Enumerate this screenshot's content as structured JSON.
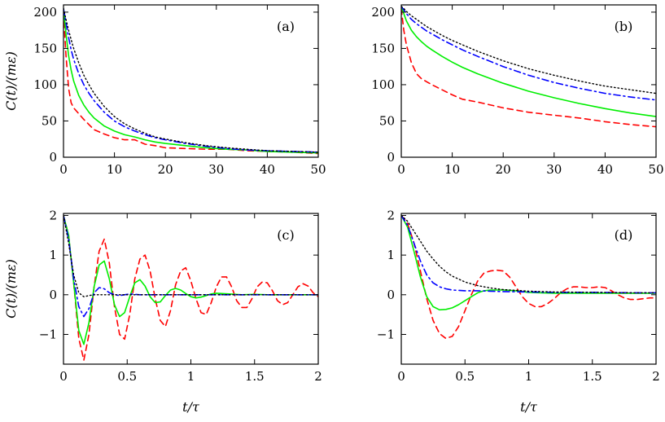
{
  "chart_data": [
    {
      "type": "line",
      "panel_label": "(a)",
      "xlabel": "",
      "ylabel": "C(t)/(mε)",
      "xlim": [
        0,
        50
      ],
      "ylim": [
        0,
        210
      ],
      "x_ticks": [
        "0",
        "10",
        "20",
        "30",
        "40",
        "50"
      ],
      "y_ticks": [
        "0",
        "50",
        "100",
        "150",
        "200"
      ],
      "x_tick_values": [
        0,
        10,
        20,
        30,
        40,
        50
      ],
      "y_tick_values": [
        0,
        50,
        100,
        150,
        200
      ],
      "grid": false,
      "series": [
        {
          "color": "#ff0000",
          "dash": "dashed",
          "x": [
            0,
            0.5,
            1,
            1.5,
            2,
            3,
            4,
            5,
            6,
            8,
            10,
            12,
            14,
            16,
            18,
            20,
            24,
            28,
            32,
            36,
            40,
            45,
            50
          ],
          "y": [
            200,
            140,
            95,
            75,
            68,
            60,
            52,
            45,
            38,
            32,
            27,
            24,
            24,
            18,
            16,
            13,
            12,
            11,
            11,
            9,
            8,
            7,
            5
          ]
        },
        {
          "color": "#00ee00",
          "dash": "solid",
          "x": [
            0,
            0.5,
            1,
            1.5,
            2,
            3,
            4,
            5,
            6,
            8,
            10,
            12,
            14,
            16,
            18,
            20,
            24,
            28,
            32,
            36,
            40,
            45,
            50
          ],
          "y": [
            205,
            170,
            140,
            120,
            105,
            85,
            72,
            62,
            54,
            43,
            36,
            31,
            28,
            24,
            21,
            19,
            16,
            13,
            11,
            10,
            8,
            7,
            6
          ]
        },
        {
          "color": "#0000ff",
          "dash": "dashdot",
          "x": [
            0,
            0.5,
            1,
            1.5,
            2,
            3,
            4,
            5,
            6,
            8,
            10,
            12,
            14,
            16,
            18,
            20,
            24,
            28,
            32,
            36,
            40,
            45,
            50
          ],
          "y": [
            205,
            185,
            165,
            148,
            135,
            115,
            100,
            88,
            78,
            62,
            50,
            42,
            36,
            31,
            27,
            24,
            19,
            15,
            12,
            10,
            9,
            8,
            7
          ]
        },
        {
          "color": "#000000",
          "dash": "dotted",
          "x": [
            0,
            0.5,
            1,
            1.5,
            2,
            3,
            4,
            5,
            6,
            8,
            10,
            12,
            14,
            16,
            18,
            20,
            24,
            28,
            32,
            36,
            40,
            45,
            50
          ],
          "y": [
            205,
            190,
            175,
            162,
            150,
            130,
            113,
            100,
            88,
            70,
            56,
            46,
            39,
            33,
            28,
            25,
            20,
            16,
            13,
            11,
            9,
            8,
            7
          ]
        }
      ]
    },
    {
      "type": "line",
      "panel_label": "(b)",
      "xlabel": "",
      "ylabel": "",
      "xlim": [
        0,
        50
      ],
      "ylim": [
        0,
        210
      ],
      "x_ticks": [
        "0",
        "10",
        "20",
        "30",
        "40",
        "50"
      ],
      "y_ticks": [
        "0",
        "50",
        "100",
        "150",
        "200"
      ],
      "x_tick_values": [
        0,
        10,
        20,
        30,
        40,
        50
      ],
      "y_tick_values": [
        0,
        50,
        100,
        150,
        200
      ],
      "grid": false,
      "series": [
        {
          "color": "#ff0000",
          "dash": "dashed",
          "x": [
            0,
            0.5,
            1,
            2,
            3,
            4,
            5,
            6,
            8,
            10,
            12,
            15,
            20,
            25,
            30,
            35,
            40,
            45,
            50
          ],
          "y": [
            205,
            175,
            155,
            130,
            115,
            108,
            104,
            100,
            93,
            86,
            80,
            76,
            68,
            62,
            58,
            54,
            49,
            45,
            42
          ]
        },
        {
          "color": "#00ee00",
          "dash": "solid",
          "x": [
            0,
            0.5,
            1,
            2,
            3,
            4,
            5,
            6,
            8,
            10,
            12,
            15,
            20,
            25,
            30,
            35,
            40,
            45,
            50
          ],
          "y": [
            208,
            198,
            188,
            175,
            166,
            159,
            153,
            148,
            139,
            131,
            124,
            115,
            102,
            91,
            82,
            74,
            67,
            61,
            56
          ]
        },
        {
          "color": "#0000ff",
          "dash": "dashdot",
          "x": [
            0,
            0.5,
            1,
            2,
            3,
            4,
            5,
            6,
            8,
            10,
            12,
            15,
            20,
            25,
            30,
            35,
            40,
            45,
            50
          ],
          "y": [
            208,
            203,
            198,
            190,
            184,
            179,
            174,
            170,
            162,
            155,
            148,
            139,
            125,
            113,
            103,
            95,
            88,
            83,
            79
          ]
        },
        {
          "color": "#000000",
          "dash": "dotted",
          "x": [
            0,
            0.5,
            1,
            2,
            3,
            4,
            5,
            6,
            8,
            10,
            12,
            15,
            20,
            25,
            30,
            35,
            40,
            45,
            50
          ],
          "y": [
            208,
            205,
            201,
            195,
            190,
            185,
            180,
            176,
            168,
            161,
            155,
            146,
            133,
            122,
            113,
            105,
            98,
            93,
            88
          ]
        }
      ]
    },
    {
      "type": "line",
      "panel_label": "(c)",
      "xlabel": "t/τ",
      "ylabel": "C(t)/(mε)",
      "xlim": [
        0,
        2
      ],
      "ylim": [
        -1.75,
        2.05
      ],
      "x_ticks": [
        "0",
        "0.5",
        "1",
        "1.5",
        "2"
      ],
      "y_ticks": [
        "−1",
        "0",
        "1",
        "2"
      ],
      "x_tick_values": [
        0,
        0.5,
        1,
        1.5,
        2
      ],
      "y_tick_values": [
        -1,
        0,
        1,
        2
      ],
      "grid": false,
      "series": [
        {
          "color": "#ff0000",
          "dash": "dashed",
          "x": [
            0,
            0.04,
            0.08,
            0.12,
            0.16,
            0.2,
            0.24,
            0.28,
            0.32,
            0.36,
            0.4,
            0.44,
            0.48,
            0.52,
            0.56,
            0.6,
            0.64,
            0.68,
            0.72,
            0.76,
            0.8,
            0.84,
            0.88,
            0.92,
            0.96,
            1.0,
            1.04,
            1.08,
            1.12,
            1.16,
            1.2,
            1.24,
            1.28,
            1.32,
            1.36,
            1.4,
            1.44,
            1.48,
            1.52,
            1.56,
            1.6,
            1.64,
            1.68,
            1.72,
            1.76,
            1.8,
            1.84,
            1.88,
            1.92,
            1.96,
            2.0
          ],
          "y": [
            2.0,
            1.5,
            0.3,
            -1.1,
            -1.65,
            -1.0,
            0.2,
            1.1,
            1.4,
            0.8,
            -0.3,
            -1.0,
            -1.12,
            -0.5,
            0.4,
            0.9,
            1.0,
            0.6,
            -0.1,
            -0.65,
            -0.8,
            -0.4,
            0.25,
            0.6,
            0.68,
            0.35,
            -0.1,
            -0.45,
            -0.5,
            -0.2,
            0.2,
            0.45,
            0.45,
            0.2,
            -0.15,
            -0.32,
            -0.32,
            -0.1,
            0.2,
            0.32,
            0.3,
            0.1,
            -0.15,
            -0.25,
            -0.2,
            0.0,
            0.2,
            0.28,
            0.22,
            0.05,
            -0.05
          ]
        },
        {
          "color": "#00ee00",
          "dash": "solid",
          "x": [
            0,
            0.04,
            0.08,
            0.12,
            0.16,
            0.2,
            0.24,
            0.28,
            0.32,
            0.36,
            0.4,
            0.44,
            0.48,
            0.52,
            0.56,
            0.6,
            0.64,
            0.68,
            0.72,
            0.76,
            0.8,
            0.84,
            0.88,
            0.92,
            0.96,
            1.0,
            1.04,
            1.08,
            1.12,
            1.16,
            1.2,
            1.3,
            1.4,
            1.5,
            1.6,
            1.7,
            1.8,
            1.9,
            2.0
          ],
          "y": [
            2.0,
            1.5,
            0.3,
            -0.9,
            -1.25,
            -0.7,
            0.2,
            0.75,
            0.85,
            0.4,
            -0.25,
            -0.55,
            -0.45,
            -0.05,
            0.3,
            0.38,
            0.22,
            -0.05,
            -0.2,
            -0.18,
            -0.02,
            0.12,
            0.16,
            0.12,
            0.03,
            -0.05,
            -0.08,
            -0.06,
            -0.02,
            0.02,
            0.04,
            0.02,
            0.0,
            0.01,
            0.0,
            0.0,
            0.0,
            0.0,
            0.0
          ]
        },
        {
          "color": "#0000ff",
          "dash": "dashdot",
          "x": [
            0,
            0.04,
            0.08,
            0.12,
            0.16,
            0.2,
            0.24,
            0.28,
            0.32,
            0.36,
            0.4,
            0.44,
            0.48,
            0.52,
            0.56,
            0.6,
            0.7,
            0.8,
            1.0,
            1.2,
            1.5,
            2.0
          ],
          "y": [
            2.0,
            1.4,
            0.4,
            -0.3,
            -0.55,
            -0.35,
            0.05,
            0.18,
            0.15,
            0.05,
            0.0,
            -0.02,
            0.0,
            0.02,
            0.01,
            0.0,
            0.0,
            0.0,
            0.0,
            0.0,
            0.0,
            0.0
          ]
        },
        {
          "color": "#000000",
          "dash": "dotted",
          "x": [
            0,
            0.04,
            0.08,
            0.12,
            0.16,
            0.2,
            0.24,
            0.28,
            0.32,
            0.4,
            0.5,
            0.7,
            1.0,
            1.5,
            2.0
          ],
          "y": [
            2.0,
            1.3,
            0.5,
            0.05,
            -0.05,
            -0.02,
            0.0,
            0.0,
            0.0,
            0.0,
            0.0,
            0.0,
            0.0,
            0.0,
            0.0
          ]
        }
      ]
    },
    {
      "type": "line",
      "panel_label": "(d)",
      "xlabel": "t/τ",
      "ylabel": "",
      "xlim": [
        0,
        2
      ],
      "ylim": [
        -1.75,
        2.05
      ],
      "x_ticks": [
        "0",
        "0.5",
        "1",
        "1.5",
        "2"
      ],
      "y_ticks": [
        "−1",
        "0",
        "1",
        "2"
      ],
      "x_tick_values": [
        0,
        0.5,
        1,
        1.5,
        2
      ],
      "y_tick_values": [
        -1,
        0,
        1,
        2
      ],
      "grid": false,
      "series": [
        {
          "color": "#ff0000",
          "dash": "dashed",
          "x": [
            0,
            0.05,
            0.1,
            0.15,
            0.2,
            0.25,
            0.3,
            0.35,
            0.4,
            0.45,
            0.5,
            0.55,
            0.6,
            0.65,
            0.7,
            0.75,
            0.8,
            0.85,
            0.9,
            0.95,
            1.0,
            1.05,
            1.1,
            1.15,
            1.2,
            1.25,
            1.3,
            1.35,
            1.4,
            1.45,
            1.5,
            1.55,
            1.6,
            1.65,
            1.7,
            1.75,
            1.8,
            1.85,
            1.9,
            1.95,
            2.0
          ],
          "y": [
            2.0,
            1.8,
            1.3,
            0.6,
            -0.1,
            -0.65,
            -0.98,
            -1.1,
            -1.05,
            -0.8,
            -0.4,
            0.0,
            0.35,
            0.55,
            0.6,
            0.62,
            0.6,
            0.45,
            0.2,
            -0.05,
            -0.22,
            -0.3,
            -0.3,
            -0.22,
            -0.1,
            0.05,
            0.15,
            0.2,
            0.2,
            0.18,
            0.18,
            0.2,
            0.18,
            0.1,
            0.0,
            -0.08,
            -0.12,
            -0.12,
            -0.1,
            -0.08,
            -0.08
          ]
        },
        {
          "color": "#00ee00",
          "dash": "solid",
          "x": [
            0,
            0.05,
            0.1,
            0.15,
            0.2,
            0.25,
            0.3,
            0.35,
            0.4,
            0.45,
            0.5,
            0.55,
            0.6,
            0.65,
            0.7,
            0.8,
            0.9,
            1.0,
            1.2,
            1.5,
            1.8,
            2.0
          ],
          "y": [
            2.0,
            1.7,
            1.1,
            0.45,
            -0.05,
            -0.3,
            -0.38,
            -0.37,
            -0.33,
            -0.25,
            -0.15,
            -0.05,
            0.05,
            0.1,
            0.12,
            0.12,
            0.1,
            0.06,
            0.04,
            0.04,
            0.04,
            0.04
          ]
        },
        {
          "color": "#0000ff",
          "dash": "dashdot",
          "x": [
            0,
            0.05,
            0.1,
            0.15,
            0.2,
            0.25,
            0.3,
            0.35,
            0.4,
            0.5,
            0.6,
            0.7,
            0.8,
            1.0,
            1.2,
            1.5,
            1.8,
            2.0
          ],
          "y": [
            2.0,
            1.75,
            1.3,
            0.85,
            0.5,
            0.3,
            0.2,
            0.15,
            0.12,
            0.1,
            0.1,
            0.09,
            0.08,
            0.07,
            0.06,
            0.06,
            0.05,
            0.05
          ]
        },
        {
          "color": "#000000",
          "dash": "dotted",
          "x": [
            0,
            0.05,
            0.1,
            0.15,
            0.2,
            0.25,
            0.3,
            0.35,
            0.4,
            0.5,
            0.6,
            0.7,
            0.8,
            0.9,
            1.0,
            1.2,
            1.5,
            1.8,
            2.0
          ],
          "y": [
            2.0,
            1.85,
            1.6,
            1.35,
            1.1,
            0.9,
            0.72,
            0.58,
            0.47,
            0.32,
            0.23,
            0.17,
            0.13,
            0.11,
            0.09,
            0.07,
            0.06,
            0.05,
            0.05
          ]
        }
      ]
    }
  ]
}
